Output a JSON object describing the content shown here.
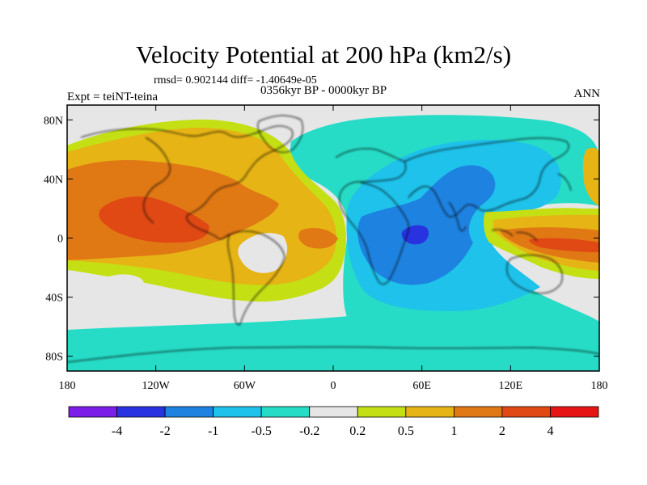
{
  "chart_data": {
    "type": "contour-map",
    "title": "Velocity Potential at 200 hPa (km2/s)",
    "stats": "rmsd= 0.902144 diff= -1.40649e-05",
    "left_label": "Expt = teiNT-teina",
    "center_label": "0356kyr BP - 0000kyr BP",
    "right_label": "ANN",
    "xlim": [
      -180,
      180
    ],
    "ylim": [
      -90,
      90
    ],
    "lat_ticks": [
      {
        "value": 80,
        "label": "80N"
      },
      {
        "value": 40,
        "label": "40N"
      },
      {
        "value": 0,
        "label": "0"
      },
      {
        "value": -40,
        "label": "40S"
      },
      {
        "value": -80,
        "label": "80S"
      }
    ],
    "lon_ticks": [
      {
        "value": -180,
        "label": "180"
      },
      {
        "value": -120,
        "label": "120W"
      },
      {
        "value": -60,
        "label": "60W"
      },
      {
        "value": 0,
        "label": "0"
      },
      {
        "value": 60,
        "label": "60E"
      },
      {
        "value": 120,
        "label": "120E"
      },
      {
        "value": 180,
        "label": "180"
      }
    ],
    "levels": [
      "-4",
      "-2",
      "-1",
      "-0.5",
      "-0.2",
      "0.2",
      "0.5",
      "1",
      "2",
      "4"
    ],
    "colors": [
      "#7a1ee8",
      "#2832e0",
      "#1e82e0",
      "#1ec2ea",
      "#26dcc6",
      "#e6e6e6",
      "#c4e014",
      "#e6b414",
      "#e07814",
      "#e04814",
      "#e61414"
    ],
    "features": [
      {
        "name": "Strong positive center (tropical East Pacific)",
        "level": "> 2",
        "lon": -125,
        "lat": 10
      },
      {
        "name": "Strong negative center (Western Indian Ocean)",
        "level": "< -2",
        "lon": 57,
        "lat": 3
      },
      {
        "name": "Positive lobe (Maritime Continent / West Pacific)",
        "level": "> 1",
        "lon": 145,
        "lat": 0
      },
      {
        "name": "Neutral pocket (South America)",
        "level": "-0.2 to 0.2",
        "lon": -55,
        "lat": -3
      },
      {
        "name": "Neutral pocket (South Pacific)",
        "level": "-0.2 to 0.2",
        "lon": -155,
        "lat": -35
      }
    ]
  }
}
